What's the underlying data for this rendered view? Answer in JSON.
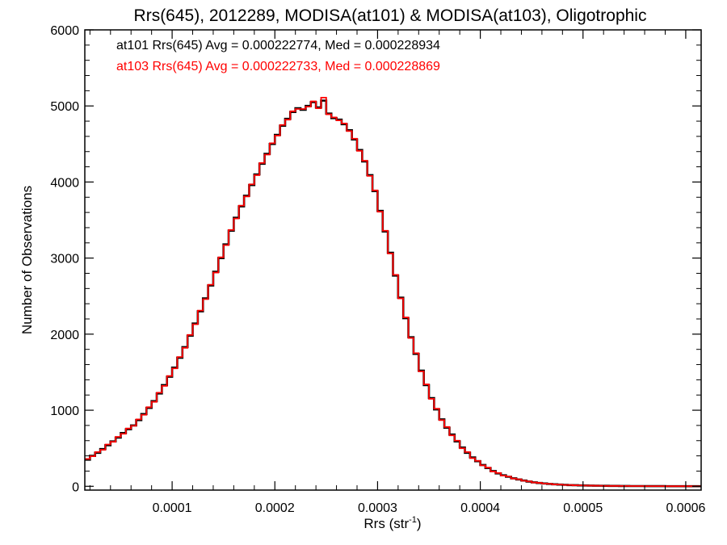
{
  "chart_data": {
    "type": "line",
    "step": true,
    "title": "Rrs(645), 2012289, MODISA(at101) & MODISA(at103), Oligotrophic",
    "xlabel_base": "Rrs (str",
    "xlabel_sup": "-1",
    "xlabel_close": ")",
    "ylabel": "Number of Observations",
    "xlim": [
      1.5e-05,
      0.000615
    ],
    "ylim": [
      -50,
      6000
    ],
    "x_ticks": [
      {
        "value": 0.0001,
        "label": "0.0001"
      },
      {
        "value": 0.0002,
        "label": "0.0002"
      },
      {
        "value": 0.0003,
        "label": "0.0003"
      },
      {
        "value": 0.0004,
        "label": "0.0004"
      },
      {
        "value": 0.0005,
        "label": "0.0005"
      },
      {
        "value": 0.0006,
        "label": "0.0006"
      }
    ],
    "y_ticks": [
      {
        "value": 0,
        "label": "0"
      },
      {
        "value": 1000,
        "label": "1000"
      },
      {
        "value": 2000,
        "label": "2000"
      },
      {
        "value": 3000,
        "label": "3000"
      },
      {
        "value": 4000,
        "label": "4000"
      },
      {
        "value": 5000,
        "label": "5000"
      },
      {
        "value": 6000,
        "label": "6000"
      }
    ],
    "legend": [
      {
        "text": "at101 Rrs(645) Avg = 0.000222774, Med = 0.000228934",
        "color": "#000000"
      },
      {
        "text": "at103 Rrs(645) Avg = 0.000222733, Med = 0.000228869",
        "color": "#ff0000"
      }
    ],
    "series": [
      {
        "name": "at101",
        "color": "#000000",
        "x": [
          1.5e-05,
          2e-05,
          2.5e-05,
          3e-05,
          3.5e-05,
          4e-05,
          4.5e-05,
          5e-05,
          5.5e-05,
          6e-05,
          6.5e-05,
          7e-05,
          7.5e-05,
          8e-05,
          8.5e-05,
          9e-05,
          9.5e-05,
          0.0001,
          0.000105,
          0.00011,
          0.000115,
          0.00012,
          0.000125,
          0.00013,
          0.000135,
          0.00014,
          0.000145,
          0.00015,
          0.000155,
          0.00016,
          0.000165,
          0.00017,
          0.000175,
          0.00018,
          0.000185,
          0.00019,
          0.000195,
          0.0002,
          0.000205,
          0.00021,
          0.000215,
          0.00022,
          0.000225,
          0.00023,
          0.000235,
          0.00024,
          0.000245,
          0.00025,
          0.000255,
          0.00026,
          0.000265,
          0.00027,
          0.000275,
          0.00028,
          0.000285,
          0.00029,
          0.000295,
          0.0003,
          0.000305,
          0.00031,
          0.000315,
          0.00032,
          0.000325,
          0.00033,
          0.000335,
          0.00034,
          0.000345,
          0.00035,
          0.000355,
          0.00036,
          0.000365,
          0.00037,
          0.000375,
          0.00038,
          0.000385,
          0.00039,
          0.000395,
          0.0004,
          0.000405,
          0.00041,
          0.000415,
          0.00042,
          0.000425,
          0.00043,
          0.000435,
          0.00044,
          0.000445,
          0.00045,
          0.000455,
          0.00046,
          0.000465,
          0.00047,
          0.000475,
          0.00048,
          0.000485,
          0.00049,
          0.000495,
          0.0005,
          0.000505,
          0.00051,
          0.000515,
          0.00052,
          0.000525,
          0.00053,
          0.000535,
          0.00054,
          0.000545,
          0.00055,
          0.000555,
          0.00056,
          0.000565,
          0.00057,
          0.000575,
          0.00058,
          0.000585,
          0.00059,
          0.000595,
          0.0006,
          0.000605,
          0.00061
        ],
        "values": [
          350,
          400,
          440,
          490,
          540,
          590,
          640,
          700,
          750,
          800,
          870,
          950,
          1030,
          1120,
          1220,
          1330,
          1440,
          1560,
          1690,
          1830,
          1980,
          2140,
          2300,
          2470,
          2640,
          2820,
          3000,
          3180,
          3360,
          3530,
          3680,
          3820,
          3960,
          4100,
          4240,
          4370,
          4500,
          4620,
          4740,
          4830,
          4920,
          4970,
          4950,
          5000,
          5050,
          4980,
          5070,
          4900,
          4840,
          4820,
          4760,
          4680,
          4560,
          4420,
          4270,
          4090,
          3880,
          3620,
          3350,
          3070,
          2770,
          2480,
          2210,
          1960,
          1740,
          1520,
          1330,
          1160,
          1010,
          880,
          770,
          680,
          590,
          510,
          440,
          380,
          330,
          280,
          240,
          200,
          170,
          145,
          125,
          105,
          90,
          75,
          62,
          52,
          44,
          37,
          31,
          26,
          22,
          19,
          16,
          14,
          12,
          10,
          9,
          8,
          7,
          6,
          5,
          5,
          4,
          4,
          3,
          3,
          3,
          2,
          2,
          2,
          2,
          1,
          1,
          1,
          1,
          1,
          1,
          1
        ]
      },
      {
        "name": "at103",
        "color": "#ff0000",
        "x": [
          1.5e-05,
          2e-05,
          2.5e-05,
          3e-05,
          3.5e-05,
          4e-05,
          4.5e-05,
          5e-05,
          5.5e-05,
          6e-05,
          6.5e-05,
          7e-05,
          7.5e-05,
          8e-05,
          8.5e-05,
          9e-05,
          9.5e-05,
          0.0001,
          0.000105,
          0.00011,
          0.000115,
          0.00012,
          0.000125,
          0.00013,
          0.000135,
          0.00014,
          0.000145,
          0.00015,
          0.000155,
          0.00016,
          0.000165,
          0.00017,
          0.000175,
          0.00018,
          0.000185,
          0.00019,
          0.000195,
          0.0002,
          0.000205,
          0.00021,
          0.000215,
          0.00022,
          0.000225,
          0.00023,
          0.000235,
          0.00024,
          0.000245,
          0.00025,
          0.000255,
          0.00026,
          0.000265,
          0.00027,
          0.000275,
          0.00028,
          0.000285,
          0.00029,
          0.000295,
          0.0003,
          0.000305,
          0.00031,
          0.000315,
          0.00032,
          0.000325,
          0.00033,
          0.000335,
          0.00034,
          0.000345,
          0.00035,
          0.000355,
          0.00036,
          0.000365,
          0.00037,
          0.000375,
          0.00038,
          0.000385,
          0.00039,
          0.000395,
          0.0004,
          0.000405,
          0.00041,
          0.000415,
          0.00042,
          0.000425,
          0.00043,
          0.000435,
          0.00044,
          0.000445,
          0.00045,
          0.000455,
          0.00046,
          0.000465,
          0.00047,
          0.000475,
          0.00048,
          0.000485,
          0.00049,
          0.000495,
          0.0005,
          0.000505,
          0.00051,
          0.000515,
          0.00052,
          0.000525,
          0.00053,
          0.000535,
          0.00054,
          0.000545,
          0.00055,
          0.000555,
          0.00056,
          0.000565,
          0.00057,
          0.000575,
          0.00058,
          0.000585,
          0.00059,
          0.000595,
          0.0006,
          0.000605,
          0.00061
        ],
        "values": [
          360,
          395,
          450,
          480,
          550,
          585,
          650,
          690,
          760,
          795,
          880,
          940,
          1040,
          1110,
          1230,
          1320,
          1450,
          1550,
          1700,
          1820,
          1990,
          2130,
          2310,
          2460,
          2650,
          2810,
          3010,
          3170,
          3370,
          3520,
          3690,
          3810,
          3970,
          4090,
          4250,
          4360,
          4510,
          4610,
          4750,
          4820,
          4930,
          4960,
          4960,
          4990,
          5060,
          4970,
          5110,
          4890,
          4850,
          4810,
          4770,
          4670,
          4570,
          4410,
          4280,
          4080,
          3890,
          3610,
          3360,
          3060,
          2780,
          2470,
          2220,
          1950,
          1750,
          1510,
          1340,
          1150,
          1020,
          870,
          780,
          670,
          600,
          500,
          450,
          370,
          335,
          275,
          245,
          195,
          175,
          140,
          128,
          102,
          92,
          73,
          64,
          50,
          45,
          36,
          32,
          25,
          23,
          18,
          17,
          13,
          12,
          10,
          9,
          8,
          7,
          6,
          5,
          5,
          4,
          4,
          3,
          3,
          3,
          2,
          2,
          2,
          2,
          1,
          1,
          1,
          1,
          1,
          1,
          1
        ]
      }
    ]
  }
}
